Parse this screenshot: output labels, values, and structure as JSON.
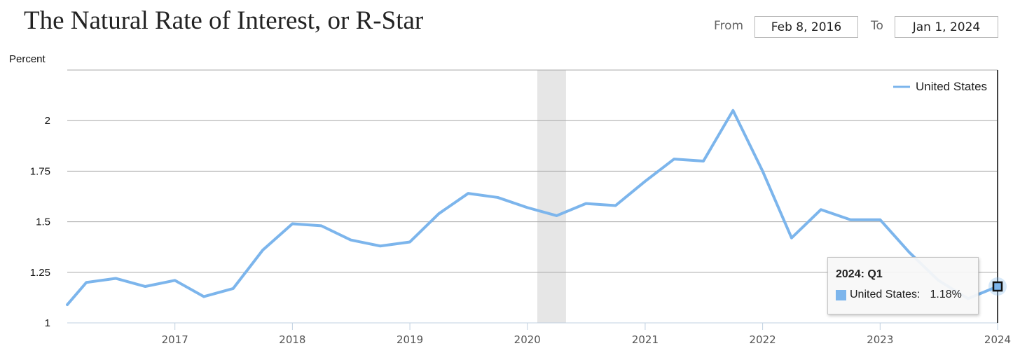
{
  "header": {
    "title": "The Natural Rate of Interest, or R-Star",
    "from_label": "From",
    "from_value": "Feb 8, 2016",
    "to_label": "To",
    "to_value": "Jan 1, 2024"
  },
  "tooltip": {
    "title": "2024: Q1",
    "series_label": "United States:",
    "value": "1.18%"
  },
  "colors": {
    "series": "#7cb5ec",
    "recession": "#e6e6e6",
    "grid": "#a8a8a8"
  },
  "chart_data": {
    "type": "line",
    "ylabel": "Percent",
    "ylim": [
      1,
      2.25
    ],
    "y_ticks": [
      1,
      1.25,
      1.5,
      1.75,
      2
    ],
    "y_tick_labels": [
      "1",
      "1.25",
      "1.5",
      "1.75",
      "2"
    ],
    "x_tick_labels": [
      "2017",
      "2018",
      "2019",
      "2020",
      "2021",
      "2022",
      "2023",
      "2024"
    ],
    "x_range": [
      "2016-02-08",
      "2024-01-01"
    ],
    "grid": true,
    "legend_position": "top-right",
    "recession_bands": [
      [
        "2020-02-01",
        "2020-04-30"
      ]
    ],
    "series": [
      {
        "name": "United States",
        "x": [
          "2016-01-01",
          "2016-04-01",
          "2016-07-01",
          "2016-10-01",
          "2017-01-01",
          "2017-04-01",
          "2017-07-01",
          "2017-10-01",
          "2018-01-01",
          "2018-04-01",
          "2018-07-01",
          "2018-10-01",
          "2019-01-01",
          "2019-04-01",
          "2019-07-01",
          "2019-10-01",
          "2020-01-01",
          "2020-04-01",
          "2020-07-01",
          "2020-10-01",
          "2021-01-01",
          "2021-04-01",
          "2021-07-01",
          "2021-10-01",
          "2022-01-01",
          "2022-04-01",
          "2022-07-01",
          "2022-10-01",
          "2023-01-01",
          "2023-04-01",
          "2023-07-01",
          "2023-10-01",
          "2024-01-01"
        ],
        "values": [
          1.09,
          1.2,
          1.22,
          1.18,
          1.21,
          1.13,
          1.17,
          1.36,
          1.49,
          1.48,
          1.41,
          1.38,
          1.4,
          1.54,
          1.64,
          1.62,
          1.57,
          1.53,
          1.59,
          1.58,
          1.7,
          1.81,
          1.8,
          2.05,
          1.75,
          1.42,
          1.56,
          1.51,
          1.51,
          1.35,
          1.21,
          1.12,
          1.18
        ]
      }
    ]
  }
}
